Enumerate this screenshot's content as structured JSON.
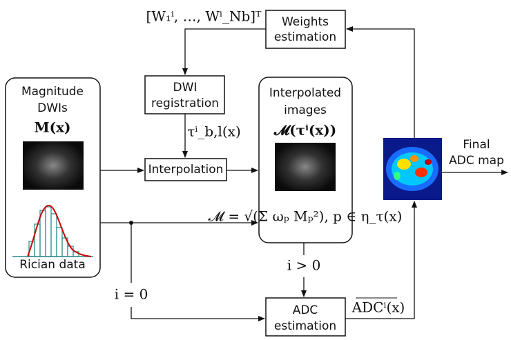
{
  "left_box": {
    "title_lines": [
      "Magnitude",
      "DWIs"
    ],
    "math": "M(x)",
    "caption": "Rician data"
  },
  "weights_box": {
    "lines": [
      "Weights",
      "estimation"
    ]
  },
  "registration_box": {
    "lines": [
      "DWI",
      "registration"
    ]
  },
  "interpolation_box": {
    "label": "Interpolation"
  },
  "interpolated_box": {
    "title_lines": [
      "Interpolated",
      "images"
    ],
    "math": "𝓜(τⁱ(x))",
    "formula": "𝓜 = √(Σ ωₚ Mₚ²), p ∈ η_τ(x)"
  },
  "adc_box": {
    "lines": [
      "ADC",
      "estimation"
    ]
  },
  "output": {
    "lines": [
      "Final",
      "ADC map"
    ]
  },
  "edge_labels": {
    "weights": "[W₁ⁱ, …, Wⁱ_Nb]ᵀ",
    "deformation": "τⁱ_b,l(x)",
    "loop_condition": "i > 0",
    "init_condition": "i = 0",
    "adc_estimate": "ADCⁱ(x)"
  }
}
